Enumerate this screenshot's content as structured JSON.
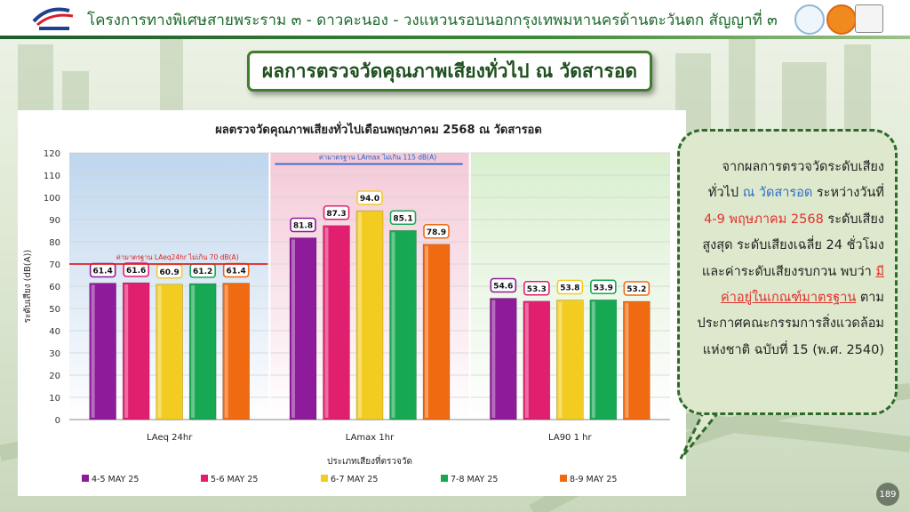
{
  "header": {
    "title": "โครงการทางพิเศษสายพระราม ๓ - ดาวคะนอง - วงแหวนรอบนอกกรุงเทพมหานครด้านตะวันตก สัญญาที่ ๓"
  },
  "slide_title": "ผลการตรวจวัดคุณภาพเสียงทั่วไป ณ วัดสารอด",
  "callout": {
    "t1": "จากผลการตรวจวัดระดับเสียงทั่วไป ",
    "t2": "ณ วัดสารอด",
    "t3": " ระหว่างวันที่ ",
    "t4": "4-9 พฤษภาคม 2568",
    "t5": " ระดับเสียงสูงสุด ระดับเสียงเฉลี่ย 24 ชั่วโมง และค่าระดับเสียงรบกวน พบว่า ",
    "t6": "มีค่าอยู่ในเกณฑ์มาตรฐาน",
    "t7": " ตามประกาศคณะกรรมการสิ่งแวดล้อมแห่งชาติ ฉบับที่ 15 (พ.ศ. 2540)"
  },
  "page_number": "189",
  "colors": {
    "header_green": "#1c6a2c",
    "callout_bg": "#dde8cc",
    "highlight_blue": "#2f6ec7",
    "highlight_red": "#e0312c"
  },
  "chart_data": {
    "type": "bar",
    "title": "ผลตรวจวัดคุณภาพเสียงทั่วไปเดือนพฤษภาคม 2568 ณ วัดสารอด",
    "xlabel": "ประเภทเสียงที่ตรวจวัด",
    "ylabel": "ระดับเสียง (dB(A))",
    "ylim": [
      0,
      120
    ],
    "yticks": [
      0,
      10,
      20,
      30,
      40,
      50,
      60,
      70,
      80,
      90,
      100,
      110,
      120
    ],
    "categories": [
      "LAeq 24hr",
      "LAmax 1hr",
      "LA90 1 hr"
    ],
    "series": [
      {
        "name": "4-5 MAY  25",
        "color": "#8e1b9a",
        "values": [
          61.4,
          81.8,
          54.6
        ]
      },
      {
        "name": "5-6 MAY  25",
        "color": "#e0206f",
        "values": [
          61.6,
          87.3,
          53.3
        ]
      },
      {
        "name": "6-7 MAY  25",
        "color": "#f3cc22",
        "values": [
          60.9,
          94.0,
          53.8
        ]
      },
      {
        "name": "7-8 MAY  25",
        "color": "#17a854",
        "values": [
          61.2,
          85.1,
          53.9
        ]
      },
      {
        "name": "8-9 MAY  25",
        "color": "#f06a12",
        "values": [
          61.4,
          78.9,
          53.2
        ]
      }
    ],
    "standards": [
      {
        "label": "ค่ามาตรฐาน  LAeq24hr ไม่เกิน 70 dB(A)",
        "value": 70,
        "category": 0,
        "color": "#e02020"
      },
      {
        "label": "ค่ามาตรฐาน  LAmax ไม่เกิน 115 dB(A)",
        "value": 115,
        "category": 1,
        "color": "#2a64c4"
      }
    ],
    "panel_colors": [
      "#bfd6ee",
      "#f4c9d8",
      "#d9efcf"
    ],
    "grid": true,
    "legend": "bottom"
  }
}
